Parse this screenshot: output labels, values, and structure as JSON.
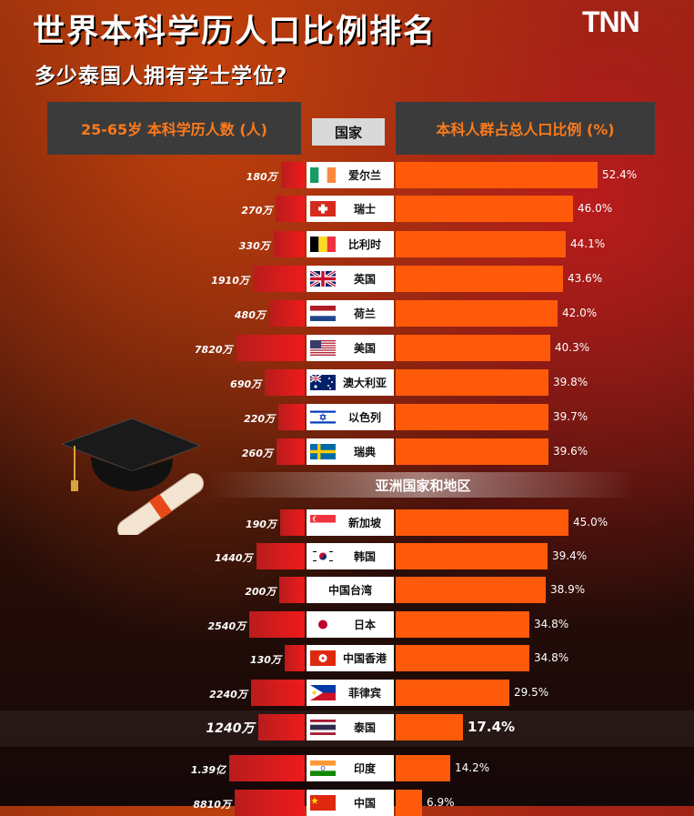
{
  "header": {
    "title": "世界本科学历人口比例排名",
    "subtitle": "多少泰国人拥有学士学位?",
    "brand": "TNN"
  },
  "columns": {
    "left": "25-65岁 本科学历人数 (人)",
    "middle": "国家",
    "right": "本科人群占总人口比例 (%)"
  },
  "section_label": "亚洲国家和地区",
  "colors": {
    "percent_bar": "#ff5a0a",
    "population_bar": "#ef1b1b",
    "header_text": "#ff7a1a"
  },
  "chart_data": {
    "type": "bar",
    "groups": [
      "",
      "亚洲国家和地区"
    ],
    "rows": [
      {
        "country": "爱尔兰",
        "flag": "ireland-flag-icon",
        "pop_label": "180万",
        "pop_wan": 180,
        "pct_label": "52.4%",
        "pct": 52.4,
        "group": 0
      },
      {
        "country": "瑞士",
        "flag": "switzerland-flag-icon",
        "pop_label": "270万",
        "pop_wan": 270,
        "pct_label": "46.0%",
        "pct": 46.0,
        "group": 0
      },
      {
        "country": "比利时",
        "flag": "belgium-flag-icon",
        "pop_label": "330万",
        "pop_wan": 330,
        "pct_label": "44.1%",
        "pct": 44.1,
        "group": 0
      },
      {
        "country": "英国",
        "flag": "uk-flag-icon",
        "pop_label": "1910万",
        "pop_wan": 1910,
        "pct_label": "43.6%",
        "pct": 43.6,
        "group": 0
      },
      {
        "country": "荷兰",
        "flag": "netherlands-flag-icon",
        "pop_label": "480万",
        "pop_wan": 480,
        "pct_label": "42.0%",
        "pct": 42.0,
        "group": 0
      },
      {
        "country": "美国",
        "flag": "usa-flag-icon",
        "pop_label": "7820万",
        "pop_wan": 7820,
        "pct_label": "40.3%",
        "pct": 40.3,
        "group": 0
      },
      {
        "country": "澳大利亚",
        "flag": "australia-flag-icon",
        "pop_label": "690万",
        "pop_wan": 690,
        "pct_label": "39.8%",
        "pct": 39.8,
        "group": 0
      },
      {
        "country": "以色列",
        "flag": "israel-flag-icon",
        "pop_label": "220万",
        "pop_wan": 220,
        "pct_label": "39.7%",
        "pct": 39.7,
        "group": 0
      },
      {
        "country": "瑞典",
        "flag": "sweden-flag-icon",
        "pop_label": "260万",
        "pop_wan": 260,
        "pct_label": "39.6%",
        "pct": 39.6,
        "group": 0
      },
      {
        "country": "新加坡",
        "flag": "singapore-flag-icon",
        "pop_label": "190万",
        "pop_wan": 190,
        "pct_label": "45.0%",
        "pct": 45.0,
        "group": 1
      },
      {
        "country": "韩国",
        "flag": "korea-flag-icon",
        "pop_label": "1440万",
        "pop_wan": 1440,
        "pct_label": "39.4%",
        "pct": 39.4,
        "group": 1
      },
      {
        "country": "中国台湾",
        "flag": "",
        "pop_label": "200万",
        "pop_wan": 200,
        "pct_label": "38.9%",
        "pct": 38.9,
        "group": 1
      },
      {
        "country": "日本",
        "flag": "japan-flag-icon",
        "pop_label": "2540万",
        "pop_wan": 2540,
        "pct_label": "34.8%",
        "pct": 34.8,
        "group": 1
      },
      {
        "country": "中国香港",
        "flag": "hongkong-flag-icon",
        "pop_label": "130万",
        "pop_wan": 130,
        "pct_label": "34.8%",
        "pct": 34.8,
        "group": 1
      },
      {
        "country": "菲律宾",
        "flag": "philippines-flag-icon",
        "pop_label": "2240万",
        "pop_wan": 2240,
        "pct_label": "29.5%",
        "pct": 29.5,
        "group": 1
      },
      {
        "country": "泰国",
        "flag": "thailand-flag-icon",
        "pop_label": "1240万",
        "pop_wan": 1240,
        "pct_label": "17.4%",
        "pct": 17.4,
        "group": 1,
        "highlight": true
      },
      {
        "country": "印度",
        "flag": "india-flag-icon",
        "pop_label": "1.39亿",
        "pop_wan": 13900,
        "pct_label": "14.2%",
        "pct": 14.2,
        "group": 1
      },
      {
        "country": "中国",
        "flag": "china-flag-icon",
        "pop_label": "8810万",
        "pop_wan": 8810,
        "pct_label": "6.9%",
        "pct": 6.9,
        "group": 1
      }
    ]
  }
}
